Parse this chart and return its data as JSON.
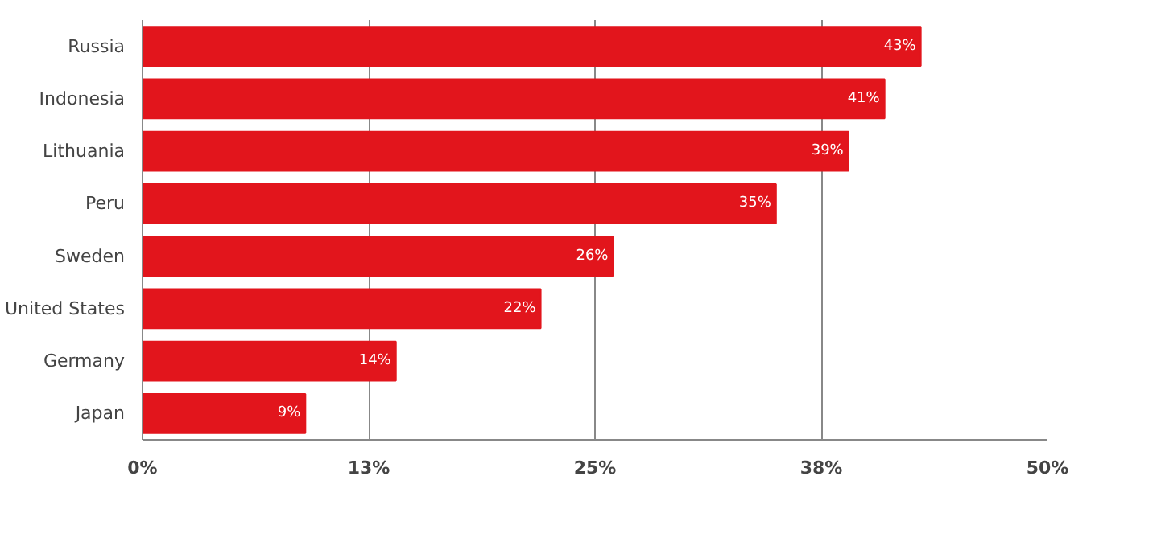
{
  "chart_data": {
    "type": "bar",
    "orientation": "horizontal",
    "categories": [
      "Russia",
      "Indonesia",
      "Lithuania",
      "Peru",
      "Sweden",
      "United States",
      "Germany",
      "Japan"
    ],
    "values": [
      43,
      41,
      39,
      35,
      26,
      22,
      14,
      9
    ],
    "color": "#e2151c",
    "data_labels": true,
    "value_labels": [
      "43%",
      "41%",
      "39%",
      "35%",
      "26%",
      "22%",
      "14%",
      "9%"
    ],
    "xlim": [
      0,
      50
    ],
    "xticks": [
      {
        "value": 0,
        "label": "0%"
      },
      {
        "value": 12.5,
        "label": "13%"
      },
      {
        "value": 25,
        "label": "25%"
      },
      {
        "value": 37.5,
        "label": "38%"
      },
      {
        "value": 50,
        "label": "50%"
      }
    ],
    "grid": "x"
  }
}
